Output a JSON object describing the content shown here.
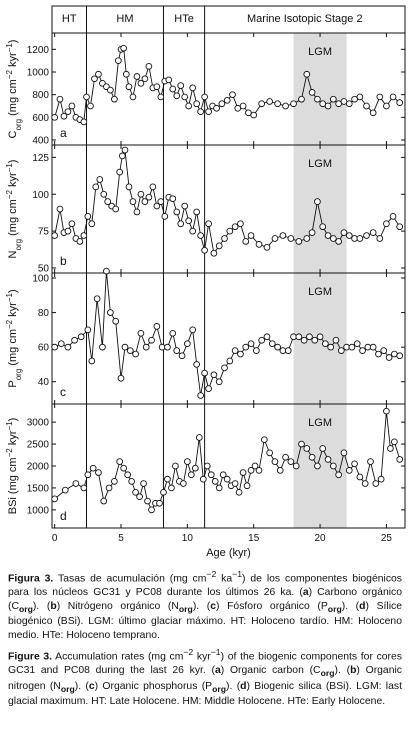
{
  "chart_data": [
    {
      "type": "line",
      "panel_label": "a",
      "ylabel_parts": {
        "pre": "C",
        "sub": "org",
        "post": " (mg cm",
        "sup": "−2",
        "post2": " kyr",
        "sup2": "−1",
        ")": ")"
      },
      "ylim": [
        400,
        1300
      ],
      "yticks": [
        400,
        600,
        800,
        1000,
        1200
      ],
      "series": [
        {
          "x": [
            0,
            0.4,
            0.7,
            1.0,
            1.3,
            1.6,
            1.9,
            2.2,
            2.4,
            2.7,
            3.0,
            3.3,
            3.6,
            3.9,
            4.2,
            4.5,
            4.8,
            5.0,
            5.2,
            5.4,
            5.6,
            5.9,
            6.2,
            6.5,
            6.8,
            7.1,
            7.4,
            7.7,
            8.0,
            8.3,
            8.6,
            8.9,
            9.2,
            9.5,
            9.8,
            10.1,
            10.4,
            10.7,
            11.0,
            11.3,
            11.6,
            11.9,
            12.2,
            12.6,
            13.0,
            13.4,
            13.8,
            14.2,
            14.6,
            15.0,
            15.6,
            16.2,
            16.8,
            17.4,
            18.0,
            18.6,
            19.0,
            19.4,
            19.8,
            20.2,
            20.6,
            21.0,
            21.4,
            21.8,
            22.2,
            22.6,
            23.0,
            23.5,
            24.0,
            24.5,
            25.0,
            25.5,
            26.0
          ],
          "y": [
            600,
            760,
            610,
            650,
            700,
            600,
            580,
            560,
            780,
            700,
            940,
            980,
            900,
            870,
            840,
            760,
            1100,
            1200,
            1210,
            980,
            870,
            780,
            960,
            900,
            940,
            1050,
            860,
            870,
            780,
            920,
            930,
            850,
            790,
            880,
            780,
            700,
            860,
            720,
            650,
            780,
            650,
            700,
            680,
            720,
            750,
            800,
            680,
            700,
            640,
            620,
            720,
            740,
            720,
            700,
            720,
            760,
            980,
            820,
            760,
            720,
            700,
            760,
            720,
            740,
            720,
            760,
            780,
            700,
            640,
            780,
            700,
            780,
            730
          ]
        }
      ]
    },
    {
      "type": "line",
      "panel_label": "b",
      "ylim": [
        50,
        130
      ],
      "yticks": [
        50,
        75,
        100,
        125
      ],
      "series": [
        {
          "x": [
            0,
            0.4,
            0.7,
            1.0,
            1.3,
            1.6,
            1.9,
            2.2,
            2.5,
            2.8,
            3.1,
            3.4,
            3.7,
            4.0,
            4.3,
            4.6,
            4.9,
            5.1,
            5.3,
            5.6,
            5.9,
            6.2,
            6.5,
            6.8,
            7.1,
            7.4,
            7.7,
            8.0,
            8.3,
            8.6,
            8.9,
            9.2,
            9.5,
            9.8,
            10.1,
            10.4,
            10.7,
            11.0,
            11.3,
            11.6,
            12.0,
            12.4,
            12.8,
            13.2,
            13.6,
            14.0,
            14.4,
            14.8,
            15.4,
            16.0,
            16.6,
            17.2,
            17.8,
            18.4,
            19.0,
            19.4,
            19.8,
            20.2,
            20.6,
            21.0,
            21.4,
            21.8,
            22.2,
            22.6,
            23.0,
            23.5,
            24.0,
            24.5,
            25.0,
            25.5,
            26.0
          ],
          "y": [
            72,
            90,
            74,
            75,
            80,
            70,
            68,
            72,
            85,
            80,
            105,
            110,
            100,
            95,
            92,
            90,
            115,
            126,
            130,
            105,
            95,
            88,
            100,
            95,
            98,
            105,
            92,
            95,
            85,
            98,
            97,
            88,
            80,
            92,
            82,
            75,
            88,
            72,
            62,
            80,
            60,
            65,
            70,
            75,
            78,
            80,
            68,
            72,
            66,
            64,
            70,
            72,
            70,
            68,
            70,
            74,
            95,
            78,
            72,
            70,
            68,
            74,
            72,
            70,
            70,
            72,
            74,
            70,
            80,
            85,
            78
          ]
        }
      ]
    },
    {
      "type": "line",
      "panel_label": "c",
      "ylim": [
        30,
        100
      ],
      "yticks": [
        40,
        60,
        80,
        100
      ],
      "series": [
        {
          "x": [
            0,
            0.5,
            1.0,
            1.5,
            2.0,
            2.5,
            2.8,
            3.2,
            3.6,
            3.9,
            4.2,
            4.6,
            5.0,
            5.3,
            5.7,
            6.1,
            6.5,
            6.9,
            7.3,
            7.7,
            8.1,
            8.5,
            8.9,
            9.2,
            9.6,
            10.0,
            10.4,
            10.7,
            11.0,
            11.3,
            11.6,
            12.0,
            12.4,
            12.8,
            13.2,
            13.6,
            14.0,
            14.4,
            14.8,
            15.2,
            15.6,
            16.0,
            16.4,
            16.8,
            17.2,
            17.6,
            18.0,
            18.4,
            18.8,
            19.2,
            19.6,
            20.0,
            20.4,
            20.8,
            21.2,
            21.6,
            22.0,
            22.4,
            22.8,
            23.2,
            23.6,
            24.0,
            24.4,
            24.8,
            25.2,
            25.6,
            26.0
          ],
          "y": [
            60,
            62,
            60,
            64,
            66,
            70,
            52,
            88,
            60,
            104,
            80,
            75,
            42,
            60,
            58,
            56,
            68,
            60,
            64,
            72,
            60,
            60,
            68,
            58,
            55,
            62,
            70,
            50,
            32,
            45,
            36,
            44,
            40,
            48,
            52,
            58,
            56,
            60,
            62,
            58,
            64,
            66,
            62,
            60,
            58,
            58,
            66,
            66,
            64,
            66,
            64,
            66,
            62,
            60,
            64,
            58,
            60,
            60,
            62,
            58,
            60,
            60,
            56,
            58,
            54,
            56,
            55
          ]
        }
      ]
    },
    {
      "type": "line",
      "panel_label": "d",
      "ylim": [
        700,
        3300
      ],
      "yticks": [
        1000,
        1500,
        2000,
        2500,
        3000
      ],
      "series": [
        {
          "x": [
            0,
            0.8,
            1.6,
            2.2,
            2.5,
            2.9,
            3.3,
            3.7,
            4.1,
            4.5,
            4.9,
            5.2,
            5.5,
            5.8,
            6.1,
            6.4,
            6.7,
            7.0,
            7.3,
            7.6,
            7.9,
            8.2,
            8.5,
            8.8,
            9.1,
            9.4,
            9.7,
            10.0,
            10.3,
            10.6,
            10.9,
            11.2,
            11.5,
            11.8,
            12.1,
            12.4,
            12.7,
            13.0,
            13.3,
            13.6,
            13.9,
            14.2,
            14.5,
            14.8,
            15.1,
            15.4,
            15.8,
            16.2,
            16.6,
            17.0,
            17.4,
            17.8,
            18.2,
            18.6,
            19.0,
            19.4,
            19.8,
            20.2,
            20.6,
            21.0,
            21.4,
            21.8,
            22.2,
            22.6,
            23.0,
            23.4,
            23.8,
            24.2,
            24.6,
            25.0,
            25.3,
            25.6,
            26.0
          ],
          "y": [
            1250,
            1450,
            1600,
            1500,
            1800,
            1950,
            1850,
            1200,
            1500,
            1650,
            2100,
            1950,
            1800,
            1650,
            1400,
            1300,
            1600,
            1200,
            1000,
            1150,
            1150,
            1400,
            1700,
            1500,
            2000,
            1650,
            1600,
            2100,
            1800,
            1950,
            2650,
            1700,
            2000,
            1800,
            1650,
            1500,
            1800,
            1700,
            1550,
            1600,
            1400,
            1850,
            1550,
            1900,
            2000,
            1900,
            2600,
            2300,
            2100,
            1900,
            2200,
            2100,
            2000,
            2500,
            2400,
            2200,
            2000,
            2400,
            2150,
            2000,
            1800,
            2300,
            1900,
            2050,
            1750,
            1600,
            2100,
            1600,
            1700,
            3250,
            2400,
            2550,
            2150
          ]
        }
      ]
    }
  ],
  "xaxis": {
    "label": "Age (kyr)",
    "ticks": [
      0,
      5,
      10,
      15,
      20,
      25
    ],
    "xlim": [
      -0.2,
      26.4
    ]
  },
  "bands": {
    "labels": [
      "HT",
      "HM",
      "HTe",
      "Marine Isotopic Stage 2"
    ],
    "lgm_label": "LGM",
    "lgm_range": [
      18,
      22
    ],
    "dividers": [
      2.4,
      8.2,
      11.3
    ]
  },
  "caption": {
    "es": {
      "label": "Figura 3.",
      "text": "Tasas de acumulación (mg cm⁻² ka⁻¹) de los componentes biogénicos para los núcleos GC31 y PC08 durante los últimos 26 ka. (a) Carbono orgánico (C",
      "full_html_es": "",
      "cont": "org). (b) Nitrógeno orgánico (Norg). (c) Fósforo orgánico (Porg). (d) Sílice biogénico (BSi). LGM: último glaciar máximo. HT: Holoceno tardío. HM: Holoceno medio. HTe: Holoceno temprano."
    },
    "en": {
      "label": "Figure 3.",
      "text": "Accumulation rates (mg cm⁻² kyr⁻¹) of the biogenic components for cores GC31 and PC08 during the last 26 kyr. (a) Organic carbon (Corg). (b) Organic nitrogen (Norg). (c) Organic phosphorus (Porg). (d) Biogenic silica (BSi). LGM: last glacial maximum. HT: Late Holocene. HM: Middle Holocene. HTe: Early Holocene."
    }
  },
  "colors": {
    "lgm": "#dcdcdc",
    "line": "#111111",
    "marker_fill": "#ffffff"
  }
}
